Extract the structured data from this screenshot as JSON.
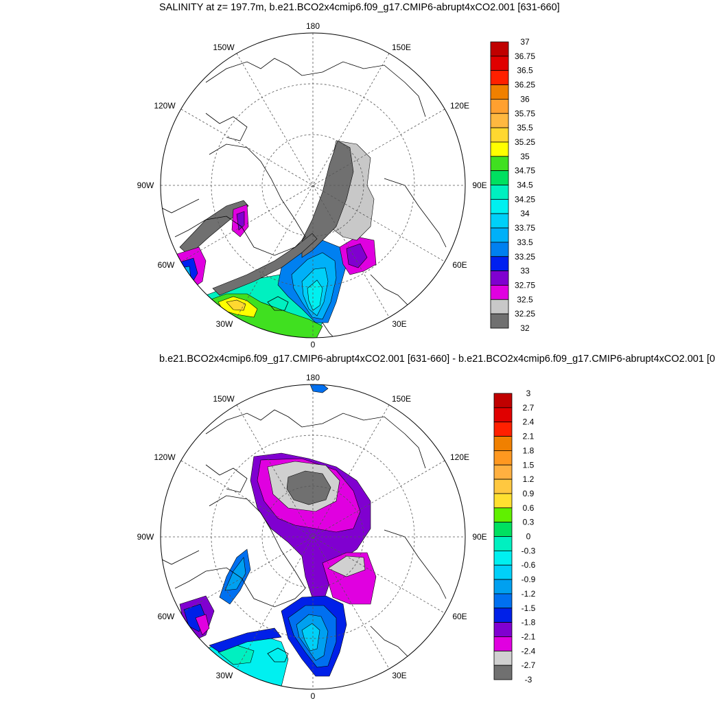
{
  "chart_data": [
    {
      "type": "polar-stereographic-filled-contour",
      "title": "SALINITY at z= 197.7m, b.e21.BCO2x4cmip6.f09_g17.CMIP6-abrupt4xCO2.001 [631-660]",
      "longitude_labels": [
        "180",
        "150E",
        "120E",
        "90E",
        "60E",
        "30E",
        "0",
        "30W",
        "60W",
        "90W",
        "120W",
        "150W"
      ],
      "colorbar": {
        "levels": [
          "37",
          "36.75",
          "36.5",
          "36.25",
          "36",
          "35.75",
          "35.5",
          "35.25",
          "35",
          "34.75",
          "34.5",
          "34.25",
          "34",
          "33.75",
          "33.5",
          "33.25",
          "33",
          "32.75",
          "32.5",
          "32.25",
          "32"
        ],
        "colors": [
          "#c00000",
          "#e00000",
          "#ff2000",
          "#f08000",
          "#ffa030",
          "#ffb840",
          "#ffd830",
          "#ffff00",
          "#40e020",
          "#00e060",
          "#00f0c0",
          "#00f0f0",
          "#00d0f8",
          "#00b0f8",
          "#0080f0",
          "#0020f0",
          "#8000d0",
          "#e000e0",
          "#c8c8c8",
          "#707070"
        ],
        "range": [
          32,
          37
        ]
      }
    },
    {
      "type": "polar-stereographic-filled-contour",
      "title": "b.e21.BCO2x4cmip6.f09_g17.CMIP6-abrupt4xCO2.001 [631-660] - b.e21.BCO2x4cmip6.f09_g17.CMIP6-abrupt4xCO2.001 [0",
      "longitude_labels": [
        "180",
        "150E",
        "120E",
        "90E",
        "60E",
        "30E",
        "0",
        "30W",
        "60W",
        "90W",
        "120W",
        "150W"
      ],
      "colorbar": {
        "levels": [
          "3",
          "2.7",
          "2.4",
          "2.1",
          "1.8",
          "1.5",
          "1.2",
          "0.9",
          "0.6",
          "0.3",
          "0",
          "-0.3",
          "-0.6",
          "-0.9",
          "-1.2",
          "-1.5",
          "-1.8",
          "-2.1",
          "-2.4",
          "-2.7",
          "-3"
        ],
        "colors": [
          "#c00000",
          "#e00000",
          "#ff2000",
          "#f08000",
          "#ff9820",
          "#ffb040",
          "#ffc840",
          "#ffe030",
          "#60f000",
          "#00e060",
          "#00f0c0",
          "#00f0f0",
          "#00d0f8",
          "#00a0f0",
          "#0070f0",
          "#0020e8",
          "#8000d0",
          "#e000e0",
          "#d0d0d0",
          "#707070"
        ],
        "range": [
          -3,
          3
        ]
      }
    }
  ]
}
